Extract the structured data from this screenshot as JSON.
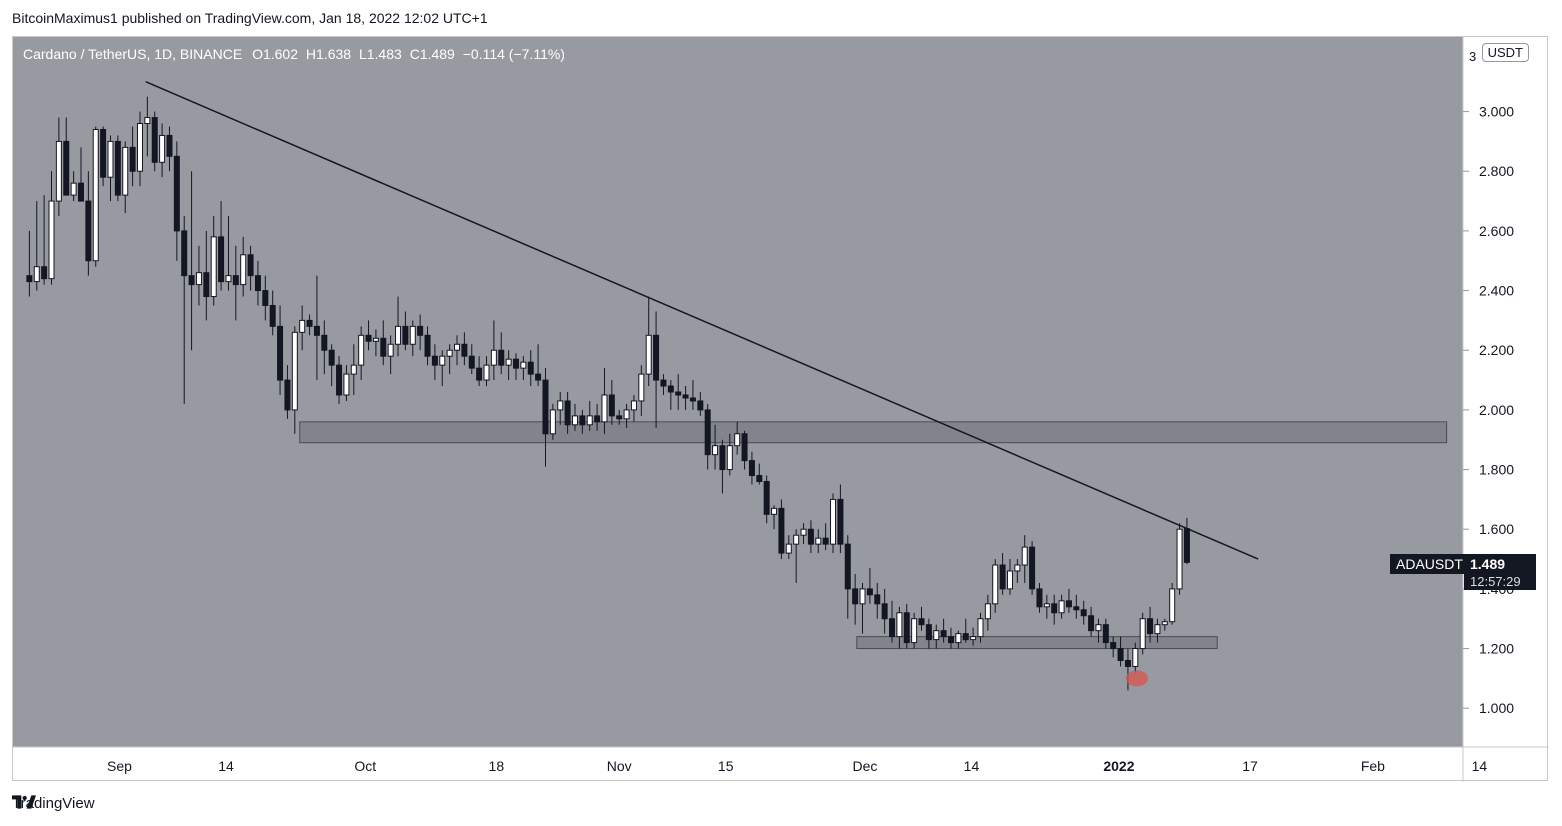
{
  "publisher": "BitcoinMaximus1 published on TradingView.com, Jan 18, 2022 12:02 UTC+1",
  "footer": {
    "brand": "TradingView"
  },
  "legend": {
    "pair": "Cardano / TetherUS, 1D, BINANCE",
    "o_label": "O",
    "o": "1.602",
    "h_label": "H",
    "h": "1.638",
    "l_label": "L",
    "l": "1.483",
    "c_label": "C",
    "c": "1.489",
    "change": "−0.114 (−7.11%)"
  },
  "axis": {
    "currency": "USDT",
    "top_partial": "3"
  },
  "price_marker": {
    "symbol": "ADAUSDT",
    "price": "1.489",
    "countdown": "12:57:29"
  },
  "colors": {
    "background": "#989aa1",
    "up": "#ffffff",
    "down": "#131722",
    "zone": "#7d8088",
    "highlight": "#d9534f"
  },
  "chart_data": {
    "type": "candlestick",
    "title": "Cardano / TetherUS, 1D, BINANCE",
    "ylim": [
      0.87,
      3.25
    ],
    "yticks": [
      1.0,
      1.2,
      1.4,
      1.6,
      1.8,
      2.0,
      2.2,
      2.4,
      2.6,
      2.8,
      3.0
    ],
    "ytick_labels": [
      "1.000",
      "1.200",
      "1.400",
      "1.600",
      "1.800",
      "2.000",
      "2.200",
      "2.400",
      "2.600",
      "2.800",
      "3.000"
    ],
    "x_start_day": -1,
    "x_end_day": 176,
    "xticks": [
      {
        "label": "Sep",
        "day": 12
      },
      {
        "label": "14",
        "day": 25
      },
      {
        "label": "Oct",
        "day": 42
      },
      {
        "label": "18",
        "day": 58
      },
      {
        "label": "Nov",
        "day": 73
      },
      {
        "label": "15",
        "day": 86
      },
      {
        "label": "Dec",
        "day": 103
      },
      {
        "label": "14",
        "day": 116
      },
      {
        "label": "2022",
        "day": 134
      },
      {
        "label": "17",
        "day": 150
      },
      {
        "label": "Feb",
        "day": 165
      },
      {
        "label": "14",
        "day": 178
      }
    ],
    "candles": [
      [
        1.0,
        2.45,
        2.6,
        2.38,
        2.43
      ],
      [
        1.9,
        2.43,
        2.7,
        2.4,
        2.48
      ],
      [
        2.8,
        2.48,
        2.72,
        2.42,
        2.44
      ],
      [
        3.7,
        2.44,
        2.8,
        2.42,
        2.7
      ],
      [
        4.6,
        2.7,
        2.98,
        2.65,
        2.9
      ],
      [
        5.5,
        2.9,
        2.98,
        2.72,
        2.72
      ],
      [
        6.4,
        2.72,
        2.8,
        2.7,
        2.76
      ],
      [
        7.3,
        2.76,
        2.88,
        2.7,
        2.7
      ],
      [
        8.2,
        2.7,
        2.8,
        2.45,
        2.5
      ],
      [
        9.1,
        2.5,
        2.95,
        2.48,
        2.94
      ],
      [
        10.0,
        2.94,
        2.95,
        2.75,
        2.78
      ],
      [
        10.9,
        2.78,
        2.92,
        2.7,
        2.9
      ],
      [
        11.8,
        2.9,
        2.92,
        2.7,
        2.72
      ],
      [
        12.7,
        2.72,
        2.9,
        2.66,
        2.88
      ],
      [
        13.6,
        2.88,
        2.95,
        2.75,
        2.8
      ],
      [
        14.5,
        2.8,
        3.0,
        2.75,
        2.96
      ],
      [
        15.4,
        2.96,
        3.05,
        2.85,
        2.98
      ],
      [
        16.3,
        2.98,
        3.0,
        2.8,
        2.83
      ],
      [
        17.2,
        2.83,
        2.96,
        2.78,
        2.92
      ],
      [
        18.1,
        2.92,
        2.95,
        2.8,
        2.85
      ],
      [
        19.0,
        2.85,
        2.9,
        2.5,
        2.6
      ],
      [
        19.9,
        2.6,
        2.65,
        2.02,
        2.45
      ],
      [
        20.8,
        2.45,
        2.8,
        2.2,
        2.42
      ],
      [
        21.7,
        2.42,
        2.55,
        2.35,
        2.46
      ],
      [
        22.6,
        2.46,
        2.6,
        2.3,
        2.38
      ],
      [
        23.5,
        2.38,
        2.65,
        2.35,
        2.58
      ],
      [
        24.4,
        2.58,
        2.7,
        2.4,
        2.43
      ],
      [
        25.3,
        2.43,
        2.65,
        2.4,
        2.45
      ],
      [
        26.2,
        2.45,
        2.55,
        2.3,
        2.42
      ],
      [
        27.1,
        2.42,
        2.58,
        2.38,
        2.52
      ],
      [
        28.0,
        2.52,
        2.55,
        2.4,
        2.45
      ],
      [
        28.9,
        2.45,
        2.5,
        2.35,
        2.4
      ],
      [
        29.8,
        2.4,
        2.45,
        2.3,
        2.35
      ],
      [
        30.7,
        2.35,
        2.4,
        2.25,
        2.28
      ],
      [
        31.6,
        2.28,
        2.35,
        2.05,
        2.1
      ],
      [
        32.5,
        2.1,
        2.15,
        1.97,
        2.0
      ],
      [
        33.4,
        2.0,
        2.28,
        1.92,
        2.26
      ],
      [
        34.3,
        2.26,
        2.35,
        2.2,
        2.3
      ],
      [
        35.2,
        2.3,
        2.32,
        2.25,
        2.28
      ],
      [
        36.1,
        2.28,
        2.45,
        2.1,
        2.25
      ],
      [
        37.0,
        2.25,
        2.3,
        2.12,
        2.2
      ],
      [
        37.9,
        2.2,
        2.22,
        2.08,
        2.15
      ],
      [
        38.8,
        2.15,
        2.18,
        2.02,
        2.05
      ],
      [
        39.7,
        2.05,
        2.15,
        2.03,
        2.12
      ],
      [
        40.6,
        2.12,
        2.22,
        2.05,
        2.15
      ],
      [
        41.5,
        2.15,
        2.28,
        2.1,
        2.25
      ],
      [
        42.4,
        2.25,
        2.3,
        2.2,
        2.23
      ],
      [
        43.3,
        2.23,
        2.27,
        2.18,
        2.24
      ],
      [
        44.2,
        2.24,
        2.3,
        2.15,
        2.18
      ],
      [
        45.1,
        2.18,
        2.25,
        2.12,
        2.22
      ],
      [
        46.0,
        2.22,
        2.38,
        2.18,
        2.28
      ],
      [
        46.9,
        2.28,
        2.33,
        2.2,
        2.22
      ],
      [
        47.8,
        2.22,
        2.3,
        2.18,
        2.28
      ],
      [
        48.7,
        2.28,
        2.32,
        2.2,
        2.25
      ],
      [
        49.6,
        2.25,
        2.28,
        2.15,
        2.18
      ],
      [
        50.5,
        2.18,
        2.22,
        2.1,
        2.15
      ],
      [
        51.4,
        2.15,
        2.2,
        2.08,
        2.18
      ],
      [
        52.3,
        2.18,
        2.22,
        2.12,
        2.2
      ],
      [
        53.2,
        2.2,
        2.25,
        2.15,
        2.22
      ],
      [
        54.1,
        2.22,
        2.26,
        2.15,
        2.18
      ],
      [
        55.0,
        2.18,
        2.22,
        2.12,
        2.14
      ],
      [
        55.9,
        2.14,
        2.18,
        2.08,
        2.1
      ],
      [
        56.8,
        2.1,
        2.18,
        2.08,
        2.15
      ],
      [
        57.7,
        2.15,
        2.3,
        2.1,
        2.2
      ],
      [
        58.6,
        2.2,
        2.26,
        2.12,
        2.15
      ],
      [
        59.5,
        2.15,
        2.2,
        2.1,
        2.17
      ],
      [
        60.4,
        2.17,
        2.19,
        2.1,
        2.14
      ],
      [
        61.3,
        2.14,
        2.18,
        2.1,
        2.16
      ],
      [
        62.2,
        2.16,
        2.2,
        2.08,
        2.12
      ],
      [
        63.1,
        2.12,
        2.22,
        2.08,
        2.1
      ],
      [
        64.0,
        2.1,
        2.14,
        1.81,
        1.92
      ],
      [
        64.9,
        1.92,
        2.02,
        1.9,
        2.0
      ],
      [
        65.8,
        2.0,
        2.06,
        1.95,
        2.03
      ],
      [
        66.7,
        2.03,
        2.06,
        1.92,
        1.95
      ],
      [
        67.6,
        1.95,
        2.02,
        1.93,
        1.98
      ],
      [
        68.5,
        1.98,
        2.0,
        1.92,
        1.95
      ],
      [
        69.4,
        1.95,
        2.03,
        1.93,
        1.98
      ],
      [
        70.3,
        1.98,
        2.02,
        1.93,
        1.96
      ],
      [
        71.2,
        1.96,
        2.14,
        1.92,
        2.05
      ],
      [
        72.1,
        2.05,
        2.1,
        1.95,
        1.98
      ],
      [
        73.0,
        1.98,
        2.0,
        1.95,
        1.97
      ],
      [
        73.9,
        1.97,
        2.02,
        1.94,
        2.0
      ],
      [
        74.8,
        2.0,
        2.05,
        1.96,
        2.03
      ],
      [
        75.7,
        2.03,
        2.15,
        1.98,
        2.12
      ],
      [
        76.6,
        2.12,
        2.38,
        2.08,
        2.25
      ],
      [
        77.5,
        2.25,
        2.33,
        1.94,
        2.1
      ],
      [
        78.4,
        2.1,
        2.12,
        2.05,
        2.08
      ],
      [
        79.3,
        2.08,
        2.1,
        2.0,
        2.06
      ],
      [
        80.2,
        2.06,
        2.12,
        2.0,
        2.05
      ],
      [
        81.1,
        2.05,
        2.08,
        2.0,
        2.04
      ],
      [
        82.0,
        2.04,
        2.1,
        2.0,
        2.03
      ],
      [
        82.9,
        2.03,
        2.06,
        1.98,
        2.0
      ],
      [
        83.8,
        2.0,
        2.02,
        1.8,
        1.85
      ],
      [
        84.7,
        1.85,
        1.95,
        1.8,
        1.88
      ],
      [
        85.6,
        1.88,
        1.9,
        1.72,
        1.8
      ],
      [
        86.5,
        1.8,
        1.92,
        1.78,
        1.88
      ],
      [
        87.4,
        1.88,
        1.96,
        1.85,
        1.92
      ],
      [
        88.3,
        1.92,
        1.93,
        1.8,
        1.83
      ],
      [
        89.2,
        1.83,
        1.86,
        1.75,
        1.78
      ],
      [
        90.1,
        1.78,
        1.82,
        1.75,
        1.76
      ],
      [
        91.0,
        1.76,
        1.78,
        1.62,
        1.65
      ],
      [
        91.9,
        1.65,
        1.68,
        1.6,
        1.67
      ],
      [
        92.8,
        1.67,
        1.7,
        1.5,
        1.52
      ],
      [
        93.7,
        1.52,
        1.58,
        1.5,
        1.55
      ],
      [
        94.6,
        1.55,
        1.6,
        1.42,
        1.58
      ],
      [
        95.5,
        1.58,
        1.62,
        1.55,
        1.6
      ],
      [
        96.4,
        1.6,
        1.63,
        1.52,
        1.55
      ],
      [
        97.3,
        1.55,
        1.6,
        1.52,
        1.57
      ],
      [
        98.2,
        1.57,
        1.62,
        1.53,
        1.55
      ],
      [
        99.1,
        1.55,
        1.72,
        1.52,
        1.7
      ],
      [
        100.0,
        1.7,
        1.75,
        1.52,
        1.55
      ],
      [
        100.9,
        1.55,
        1.58,
        1.3,
        1.4
      ],
      [
        101.8,
        1.4,
        1.45,
        1.28,
        1.35
      ],
      [
        102.7,
        1.35,
        1.42,
        1.25,
        1.4
      ],
      [
        103.6,
        1.4,
        1.47,
        1.35,
        1.38
      ],
      [
        104.5,
        1.38,
        1.42,
        1.3,
        1.35
      ],
      [
        105.4,
        1.35,
        1.4,
        1.25,
        1.3
      ],
      [
        106.3,
        1.3,
        1.36,
        1.22,
        1.24
      ],
      [
        107.2,
        1.24,
        1.34,
        1.2,
        1.32
      ],
      [
        108.1,
        1.32,
        1.35,
        1.2,
        1.22
      ],
      [
        109.0,
        1.22,
        1.32,
        1.2,
        1.3
      ],
      [
        109.9,
        1.3,
        1.34,
        1.26,
        1.28
      ],
      [
        110.8,
        1.28,
        1.3,
        1.2,
        1.23
      ],
      [
        111.7,
        1.23,
        1.28,
        1.2,
        1.26
      ],
      [
        112.6,
        1.26,
        1.3,
        1.22,
        1.24
      ],
      [
        113.5,
        1.24,
        1.27,
        1.2,
        1.22
      ],
      [
        114.4,
        1.22,
        1.26,
        1.2,
        1.25
      ],
      [
        115.3,
        1.25,
        1.3,
        1.22,
        1.23
      ],
      [
        116.2,
        1.23,
        1.27,
        1.21,
        1.24
      ],
      [
        117.1,
        1.24,
        1.32,
        1.22,
        1.3
      ],
      [
        118.0,
        1.3,
        1.38,
        1.26,
        1.35
      ],
      [
        118.9,
        1.35,
        1.5,
        1.32,
        1.48
      ],
      [
        119.8,
        1.48,
        1.52,
        1.38,
        1.4
      ],
      [
        120.7,
        1.4,
        1.5,
        1.38,
        1.46
      ],
      [
        121.6,
        1.46,
        1.5,
        1.42,
        1.48
      ],
      [
        122.5,
        1.48,
        1.58,
        1.42,
        1.54
      ],
      [
        123.4,
        1.54,
        1.56,
        1.38,
        1.4
      ],
      [
        124.3,
        1.4,
        1.42,
        1.32,
        1.34
      ],
      [
        125.2,
        1.34,
        1.38,
        1.3,
        1.35
      ],
      [
        126.1,
        1.35,
        1.38,
        1.28,
        1.32
      ],
      [
        127.0,
        1.32,
        1.38,
        1.3,
        1.36
      ],
      [
        127.9,
        1.36,
        1.4,
        1.32,
        1.34
      ],
      [
        128.8,
        1.34,
        1.38,
        1.3,
        1.33
      ],
      [
        129.7,
        1.33,
        1.36,
        1.28,
        1.31
      ],
      [
        130.6,
        1.31,
        1.34,
        1.24,
        1.26
      ],
      [
        131.5,
        1.26,
        1.3,
        1.22,
        1.28
      ],
      [
        132.4,
        1.28,
        1.3,
        1.2,
        1.22
      ],
      [
        133.3,
        1.22,
        1.24,
        1.17,
        1.2
      ],
      [
        134.2,
        1.2,
        1.24,
        1.14,
        1.16
      ],
      [
        135.1,
        1.16,
        1.2,
        1.06,
        1.14
      ],
      [
        136.0,
        1.14,
        1.22,
        1.12,
        1.2
      ],
      [
        136.9,
        1.2,
        1.32,
        1.18,
        1.3
      ],
      [
        137.8,
        1.3,
        1.34,
        1.22,
        1.25
      ],
      [
        138.7,
        1.25,
        1.3,
        1.22,
        1.28
      ],
      [
        139.6,
        1.28,
        1.3,
        1.26,
        1.29
      ],
      [
        140.5,
        1.29,
        1.42,
        1.28,
        1.4
      ],
      [
        141.4,
        1.4,
        1.62,
        1.38,
        1.6
      ],
      [
        142.3,
        1.602,
        1.638,
        1.483,
        1.489
      ]
    ],
    "trendline": {
      "start": {
        "day": 15.2,
        "price": 3.1
      },
      "end": {
        "day": 151.0,
        "price": 1.5
      }
    },
    "zones": [
      {
        "name": "resistance",
        "day_start": 34.0,
        "day_end": 174.0,
        "price_low": 1.89,
        "price_high": 1.96
      },
      {
        "name": "support",
        "day_start": 102.0,
        "day_end": 146.0,
        "price_low": 1.2,
        "price_high": 1.24
      }
    ],
    "highlight": {
      "day": 136.2,
      "price": 1.1
    }
  }
}
